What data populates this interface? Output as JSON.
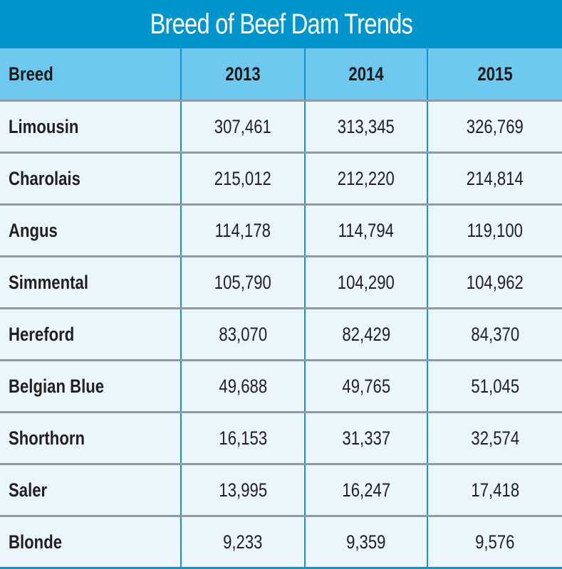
{
  "title": "Breed of Beef Dam Trends",
  "colors": {
    "title_bar": "#0096CD",
    "header_row": "#6FC8EE",
    "body_row": "#EAF5FC",
    "vertical_rule": "#1593C8",
    "horizontal_rule": "#8F9AA3"
  },
  "chart_data": {
    "type": "table",
    "title": "Breed of Beef Dam Trends",
    "columns": [
      "Breed",
      "2013",
      "2014",
      "2015"
    ],
    "rows": [
      {
        "breed": "Limousin",
        "values": [
          "307,461",
          "313,345",
          "326,769"
        ]
      },
      {
        "breed": "Charolais",
        "values": [
          "215,012",
          "212,220",
          "214,814"
        ]
      },
      {
        "breed": "Angus",
        "values": [
          "114,178",
          "114,794",
          "119,100"
        ]
      },
      {
        "breed": "Simmental",
        "values": [
          "105,790",
          "104,290",
          "104,962"
        ]
      },
      {
        "breed": "Hereford",
        "values": [
          "83,070",
          "82,429",
          "84,370"
        ]
      },
      {
        "breed": "Belgian Blue",
        "values": [
          "49,688",
          "49,765",
          "51,045"
        ]
      },
      {
        "breed": "Shorthorn",
        "values": [
          "16,153",
          "31,337",
          "32,574"
        ]
      },
      {
        "breed": "Saler",
        "values": [
          "13,995",
          "16,247",
          "17,418"
        ]
      },
      {
        "breed": "Blonde",
        "values": [
          "9,233",
          "9,359",
          "9,576"
        ]
      }
    ]
  }
}
